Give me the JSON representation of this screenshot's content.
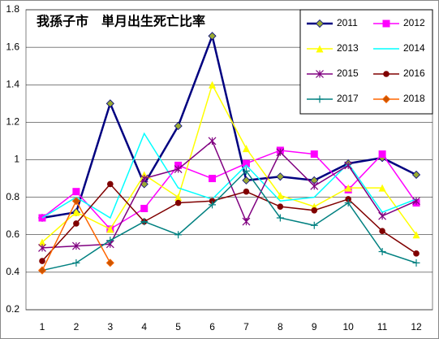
{
  "chart_data": {
    "type": "line",
    "title": "我孫子市　単月出生死亡比率",
    "categories": [
      "1",
      "2",
      "3",
      "4",
      "5",
      "6",
      "7",
      "8",
      "9",
      "10",
      "11",
      "12"
    ],
    "ylim": [
      0.2,
      1.8
    ],
    "yticks": [
      0.2,
      0.4,
      0.6,
      0.8,
      1,
      1.2,
      1.4,
      1.6,
      1.8
    ],
    "grid": true,
    "legend": "top-right",
    "series": [
      {
        "name": "2011",
        "color": "#000080",
        "marker": "diamond",
        "marker_color": "#99aa33",
        "values": [
          0.69,
          0.72,
          1.3,
          0.87,
          1.18,
          1.66,
          0.89,
          0.91,
          0.89,
          0.98,
          1.01,
          0.92
        ]
      },
      {
        "name": "2012",
        "color": "#ff00ff",
        "marker": "square",
        "marker_color": "#ff00ff",
        "values": [
          0.69,
          0.83,
          0.63,
          0.74,
          0.97,
          0.9,
          0.98,
          1.05,
          1.03,
          0.84,
          1.03,
          0.77
        ]
      },
      {
        "name": "2013",
        "color": "#ffff00",
        "marker": "triangle",
        "marker_color": "#ffff00",
        "values": [
          0.56,
          0.72,
          0.63,
          0.92,
          0.8,
          1.4,
          1.06,
          0.81,
          0.75,
          0.85,
          0.85,
          0.6
        ]
      },
      {
        "name": "2014",
        "color": "#00ffff",
        "marker": "none",
        "marker_color": "#00ffff",
        "values": [
          0.69,
          0.8,
          0.69,
          1.14,
          0.85,
          0.79,
          0.97,
          0.78,
          0.8,
          0.98,
          0.72,
          0.79
        ]
      },
      {
        "name": "2015",
        "color": "#800080",
        "marker": "asterisk",
        "marker_color": "#800080",
        "values": [
          0.53,
          0.54,
          0.55,
          0.9,
          0.95,
          1.1,
          0.67,
          1.04,
          0.86,
          0.97,
          0.7,
          0.78
        ]
      },
      {
        "name": "2016",
        "color": "#800000",
        "marker": "circle",
        "marker_color": "#800000",
        "values": [
          0.46,
          0.66,
          0.87,
          0.67,
          0.77,
          0.78,
          0.83,
          0.75,
          0.73,
          0.79,
          0.62,
          0.5
        ]
      },
      {
        "name": "2017",
        "color": "#008080",
        "marker": "plus",
        "marker_color": "#008080",
        "values": [
          0.41,
          0.45,
          0.57,
          0.67,
          0.6,
          0.76,
          0.94,
          0.69,
          0.65,
          0.77,
          0.51,
          0.45
        ]
      },
      {
        "name": "2018",
        "color": "#ff6600",
        "marker": "diamond",
        "marker_color": "#cc5500",
        "values": [
          0.41,
          0.78,
          0.45,
          null,
          null,
          null,
          null,
          null,
          null,
          null,
          null,
          null
        ]
      }
    ]
  }
}
